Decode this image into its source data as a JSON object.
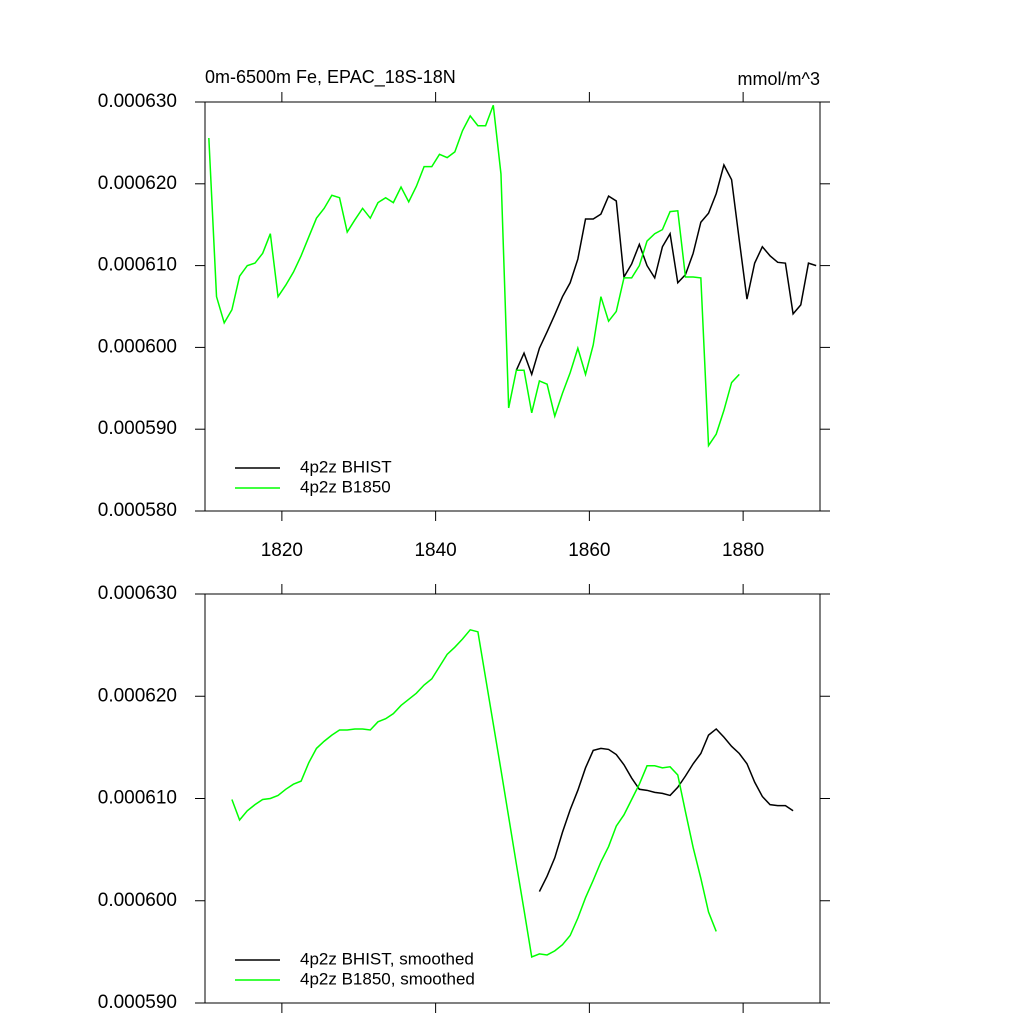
{
  "chart_data": [
    {
      "type": "line",
      "title": "0m-6500m Fe, EPAC_18S-18N",
      "units_label": "mmol/m^3",
      "xlim": [
        1810,
        1890
      ],
      "xticks": [
        1820,
        1840,
        1860,
        1880
      ],
      "ylim": [
        0.00058,
        0.00063
      ],
      "yticks": [
        {
          "value": 0.00058,
          "label": "0.000580"
        },
        {
          "value": 0.00059,
          "label": "0.000590"
        },
        {
          "value": 0.0006,
          "label": "0.000600"
        },
        {
          "value": 0.00061,
          "label": "0.000610"
        },
        {
          "value": 0.00062,
          "label": "0.000620"
        },
        {
          "value": 0.00063,
          "label": "0.000630"
        }
      ],
      "legend": "lower left",
      "x": [
        1810.5,
        1811.5,
        1812.5,
        1813.5,
        1814.5,
        1815.5,
        1816.5,
        1817.5,
        1818.5,
        1819.5,
        1820.5,
        1821.5,
        1822.5,
        1823.5,
        1824.5,
        1825.5,
        1826.5,
        1827.5,
        1828.5,
        1829.5,
        1830.5,
        1831.5,
        1832.5,
        1833.5,
        1834.5,
        1835.5,
        1836.5,
        1837.5,
        1838.5,
        1839.5,
        1840.5,
        1841.5,
        1842.5,
        1843.5,
        1844.5,
        1845.5,
        1846.5,
        1847.5,
        1848.5,
        1849.5,
        1850.5,
        1851.5,
        1852.5,
        1853.5,
        1854.5,
        1855.5,
        1856.5,
        1857.5,
        1858.5,
        1859.5,
        1860.5,
        1861.5,
        1862.5,
        1863.5,
        1864.5,
        1865.5,
        1866.5,
        1867.5,
        1868.5,
        1869.5,
        1870.5,
        1871.5,
        1872.5,
        1873.5,
        1874.5,
        1875.5,
        1876.5,
        1877.5,
        1878.5,
        1879.5,
        1880.5,
        1881.5,
        1882.5,
        1883.5,
        1884.5,
        1885.5,
        1886.5,
        1887.5,
        1888.5,
        1889.5
      ],
      "series": [
        {
          "name": "4p2z BHIST",
          "color": "#000000",
          "values": [
            null,
            null,
            null,
            null,
            null,
            null,
            null,
            null,
            null,
            null,
            null,
            null,
            null,
            null,
            null,
            null,
            null,
            null,
            null,
            null,
            null,
            null,
            null,
            null,
            null,
            null,
            null,
            null,
            null,
            null,
            null,
            null,
            null,
            null,
            null,
            null,
            null,
            null,
            null,
            null,
            0.0005972,
            0.0005993,
            0.0005967,
            0.0005999,
            0.0006019,
            0.000604,
            0.0006062,
            0.0006079,
            0.0006108,
            0.0006157,
            0.0006157,
            0.0006163,
            0.0006185,
            0.0006179,
            0.0006086,
            0.0006102,
            0.0006126,
            0.00061,
            0.0006085,
            0.0006123,
            0.0006139,
            0.0006079,
            0.0006089,
            0.0006115,
            0.0006153,
            0.0006164,
            0.0006188,
            0.0006223,
            0.0006205,
            0.0006131,
            0.0006059,
            0.0006103,
            0.0006123,
            0.0006112,
            0.0006104,
            0.0006103,
            0.0006041,
            0.0006052,
            0.0006103,
            0.00061
          ]
        },
        {
          "name": "4p2z B1850",
          "color": "#00ff00",
          "values": [
            0.0006256,
            0.0006062,
            0.000603,
            0.0006046,
            0.0006087,
            0.00061,
            0.0006103,
            0.0006115,
            0.0006139,
            0.0006062,
            0.0006076,
            0.0006092,
            0.0006112,
            0.0006135,
            0.0006158,
            0.000617,
            0.0006186,
            0.0006183,
            0.0006141,
            0.0006156,
            0.000617,
            0.0006158,
            0.0006177,
            0.0006183,
            0.0006177,
            0.0006196,
            0.0006178,
            0.0006197,
            0.0006221,
            0.0006221,
            0.0006236,
            0.0006232,
            0.0006239,
            0.0006265,
            0.0006283,
            0.0006271,
            0.0006271,
            0.0006296,
            0.0006212,
            0.0005926,
            0.0005972,
            0.0005972,
            0.000592,
            0.0005959,
            0.0005955,
            0.0005916,
            0.0005944,
            0.0005969,
            0.0005999,
            0.0005967,
            0.0006003,
            0.0006062,
            0.0006032,
            0.0006044,
            0.0006085,
            0.0006085,
            0.00061,
            0.000613,
            0.0006139,
            0.0006144,
            0.0006166,
            0.0006167,
            0.0006086,
            0.0006086,
            0.0006085,
            0.000588,
            0.0005894,
            0.0005923,
            0.0005957,
            0.0005967,
            null,
            null,
            null,
            null,
            null,
            null,
            null,
            null,
            null,
            null
          ]
        }
      ]
    },
    {
      "type": "line",
      "xlim": [
        1810,
        1890
      ],
      "xticks": [
        {
          "value": 1820,
          "label": null
        },
        {
          "value": 1840,
          "label": null
        },
        {
          "value": 1860,
          "label": null
        },
        {
          "value": 1880,
          "label": null
        }
      ],
      "ylim": [
        0.00059,
        0.00063
      ],
      "yticks": [
        {
          "value": 0.00059,
          "label": "0.000590"
        },
        {
          "value": 0.0006,
          "label": "0.000600"
        },
        {
          "value": 0.00061,
          "label": "0.000610"
        },
        {
          "value": 0.00062,
          "label": "0.000620"
        },
        {
          "value": 0.00063,
          "label": "0.000630"
        }
      ],
      "legend": "lower left",
      "x": [
        1810.5,
        1811.5,
        1812.5,
        1813.5,
        1814.5,
        1815.5,
        1816.5,
        1817.5,
        1818.5,
        1819.5,
        1820.5,
        1821.5,
        1822.5,
        1823.5,
        1824.5,
        1825.5,
        1826.5,
        1827.5,
        1828.5,
        1829.5,
        1830.5,
        1831.5,
        1832.5,
        1833.5,
        1834.5,
        1835.5,
        1836.5,
        1837.5,
        1838.5,
        1839.5,
        1840.5,
        1841.5,
        1842.5,
        1843.5,
        1844.5,
        1845.5,
        1846.5,
        1847.5,
        1848.5,
        1849.5,
        1850.5,
        1851.5,
        1852.5,
        1853.5,
        1854.5,
        1855.5,
        1856.5,
        1857.5,
        1858.5,
        1859.5,
        1860.5,
        1861.5,
        1862.5,
        1863.5,
        1864.5,
        1865.5,
        1866.5,
        1867.5,
        1868.5,
        1869.5,
        1870.5,
        1871.5,
        1872.5,
        1873.5,
        1874.5,
        1875.5,
        1876.5,
        1877.5,
        1878.5,
        1879.5,
        1880.5,
        1881.5,
        1882.5,
        1883.5,
        1884.5,
        1885.5,
        1886.5,
        1887.5,
        1888.5,
        1889.5
      ],
      "series": [
        {
          "name": "4p2z BHIST, smoothed",
          "color": "#000000",
          "values": [
            null,
            null,
            null,
            null,
            null,
            null,
            null,
            null,
            null,
            null,
            null,
            null,
            null,
            null,
            null,
            null,
            null,
            null,
            null,
            null,
            null,
            null,
            null,
            null,
            null,
            null,
            null,
            null,
            null,
            null,
            null,
            null,
            null,
            null,
            null,
            null,
            null,
            null,
            null,
            null,
            null,
            null,
            null,
            0.0006009,
            0.0006024,
            0.0006042,
            0.0006067,
            0.0006089,
            0.0006108,
            0.000613,
            0.0006147,
            0.0006149,
            0.0006148,
            0.0006143,
            0.0006133,
            0.000612,
            0.0006109,
            0.0006108,
            0.0006106,
            0.0006105,
            0.0006103,
            0.0006111,
            0.0006122,
            0.0006134,
            0.0006144,
            0.0006162,
            0.0006168,
            0.000616,
            0.0006151,
            0.0006144,
            0.0006134,
            0.0006116,
            0.0006102,
            0.0006094,
            0.0006093,
            0.0006093,
            0.0006088,
            null,
            null,
            null
          ]
        },
        {
          "name": "4p2z B1850, smoothed",
          "color": "#00ff00",
          "values": [
            null,
            null,
            null,
            0.0006099,
            0.0006079,
            0.0006088,
            0.0006094,
            0.0006099,
            0.00061,
            0.0006103,
            0.0006109,
            0.0006114,
            0.0006117,
            0.0006135,
            0.0006149,
            0.0006156,
            0.0006162,
            0.0006167,
            0.0006167,
            0.0006168,
            0.0006168,
            0.0006167,
            0.0006175,
            0.0006178,
            0.0006183,
            0.0006191,
            0.0006197,
            0.0006203,
            0.0006211,
            0.0006217,
            0.0006229,
            0.0006241,
            0.0006248,
            0.0006256,
            0.0006265,
            0.0006263,
            0.0006218,
            0.0006173,
            0.0006128,
            0.0006082,
            0.0006036,
            0.0005991,
            0.0005945,
            0.0005948,
            0.0005947,
            0.0005951,
            0.0005957,
            0.0005966,
            0.0005983,
            0.0006003,
            0.000602,
            0.0006038,
            0.0006053,
            0.0006073,
            0.0006084,
            0.0006099,
            0.0006114,
            0.0006132,
            0.0006132,
            0.000613,
            0.0006131,
            0.0006123,
            0.0006087,
            0.0006052,
            0.0006022,
            0.0005989,
            0.000597,
            null,
            null,
            null,
            null,
            null,
            null,
            null,
            null,
            null,
            null,
            null,
            null,
            null
          ]
        }
      ]
    }
  ]
}
